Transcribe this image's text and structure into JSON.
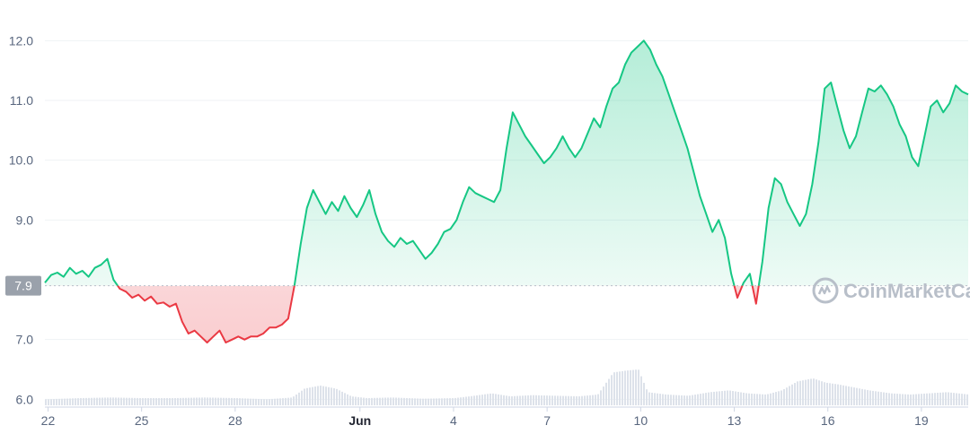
{
  "watermark": {
    "text": "CoinMarketCap"
  },
  "colors": {
    "up": "#16c784",
    "down": "#ea3943",
    "grid": "#eff2f5",
    "axis_text": "#58667e",
    "badge": "#9aa1ab",
    "volume": "#dde2ea"
  },
  "chart_data": {
    "type": "area",
    "baseline": 7.9,
    "baseline_label": "7.9",
    "ylim": [
      5.9,
      12.5
    ],
    "y_ticks": [
      {
        "value": 6.0,
        "label": "6.0"
      },
      {
        "value": 7.0,
        "label": "7.0"
      },
      {
        "value": 9.0,
        "label": "9.0"
      },
      {
        "value": 10.0,
        "label": "10.0"
      },
      {
        "value": 11.0,
        "label": "11.0"
      },
      {
        "value": 12.0,
        "label": "12.0"
      }
    ],
    "x_range": [
      21.9,
      51.5
    ],
    "x_ticks": [
      {
        "day": 22,
        "label": "22",
        "bold": false
      },
      {
        "day": 25,
        "label": "25",
        "bold": false
      },
      {
        "day": 28,
        "label": "28",
        "bold": false
      },
      {
        "day": 32,
        "label": "Jun",
        "bold": true
      },
      {
        "day": 35,
        "label": "4",
        "bold": false
      },
      {
        "day": 38,
        "label": "7",
        "bold": false
      },
      {
        "day": 41,
        "label": "10",
        "bold": false
      },
      {
        "day": 44,
        "label": "13",
        "bold": false
      },
      {
        "day": 47,
        "label": "16",
        "bold": false
      },
      {
        "day": 50,
        "label": "19",
        "bold": false
      }
    ],
    "price": [
      [
        21.9,
        7.95
      ],
      [
        22.1,
        8.08
      ],
      [
        22.3,
        8.12
      ],
      [
        22.5,
        8.05
      ],
      [
        22.7,
        8.2
      ],
      [
        22.9,
        8.1
      ],
      [
        23.1,
        8.15
      ],
      [
        23.3,
        8.05
      ],
      [
        23.5,
        8.2
      ],
      [
        23.7,
        8.25
      ],
      [
        23.9,
        8.35
      ],
      [
        24.1,
        8.0
      ],
      [
        24.3,
        7.85
      ],
      [
        24.5,
        7.8
      ],
      [
        24.7,
        7.7
      ],
      [
        24.9,
        7.75
      ],
      [
        25.1,
        7.65
      ],
      [
        25.3,
        7.72
      ],
      [
        25.5,
        7.6
      ],
      [
        25.7,
        7.62
      ],
      [
        25.9,
        7.55
      ],
      [
        26.1,
        7.6
      ],
      [
        26.3,
        7.3
      ],
      [
        26.5,
        7.1
      ],
      [
        26.7,
        7.15
      ],
      [
        26.9,
        7.05
      ],
      [
        27.1,
        6.95
      ],
      [
        27.3,
        7.05
      ],
      [
        27.5,
        7.15
      ],
      [
        27.7,
        6.95
      ],
      [
        27.9,
        7.0
      ],
      [
        28.1,
        7.05
      ],
      [
        28.3,
        7.0
      ],
      [
        28.5,
        7.05
      ],
      [
        28.7,
        7.05
      ],
      [
        28.9,
        7.1
      ],
      [
        29.1,
        7.2
      ],
      [
        29.3,
        7.2
      ],
      [
        29.5,
        7.25
      ],
      [
        29.7,
        7.35
      ],
      [
        29.9,
        7.9
      ],
      [
        30.1,
        8.6
      ],
      [
        30.3,
        9.2
      ],
      [
        30.5,
        9.5
      ],
      [
        30.7,
        9.3
      ],
      [
        30.9,
        9.1
      ],
      [
        31.1,
        9.3
      ],
      [
        31.3,
        9.15
      ],
      [
        31.5,
        9.4
      ],
      [
        31.7,
        9.2
      ],
      [
        31.9,
        9.05
      ],
      [
        32.1,
        9.25
      ],
      [
        32.3,
        9.5
      ],
      [
        32.5,
        9.1
      ],
      [
        32.7,
        8.8
      ],
      [
        32.9,
        8.65
      ],
      [
        33.1,
        8.55
      ],
      [
        33.3,
        8.7
      ],
      [
        33.5,
        8.6
      ],
      [
        33.7,
        8.65
      ],
      [
        33.9,
        8.5
      ],
      [
        34.1,
        8.35
      ],
      [
        34.3,
        8.45
      ],
      [
        34.5,
        8.6
      ],
      [
        34.7,
        8.8
      ],
      [
        34.9,
        8.85
      ],
      [
        35.1,
        9.0
      ],
      [
        35.3,
        9.3
      ],
      [
        35.5,
        9.55
      ],
      [
        35.7,
        9.45
      ],
      [
        35.9,
        9.4
      ],
      [
        36.1,
        9.35
      ],
      [
        36.3,
        9.3
      ],
      [
        36.5,
        9.5
      ],
      [
        36.7,
        10.2
      ],
      [
        36.9,
        10.8
      ],
      [
        37.1,
        10.6
      ],
      [
        37.3,
        10.4
      ],
      [
        37.5,
        10.25
      ],
      [
        37.7,
        10.1
      ],
      [
        37.9,
        9.95
      ],
      [
        38.1,
        10.05
      ],
      [
        38.3,
        10.2
      ],
      [
        38.5,
        10.4
      ],
      [
        38.7,
        10.2
      ],
      [
        38.9,
        10.05
      ],
      [
        39.1,
        10.2
      ],
      [
        39.3,
        10.45
      ],
      [
        39.5,
        10.7
      ],
      [
        39.7,
        10.55
      ],
      [
        39.9,
        10.9
      ],
      [
        40.1,
        11.2
      ],
      [
        40.3,
        11.3
      ],
      [
        40.5,
        11.6
      ],
      [
        40.7,
        11.8
      ],
      [
        40.9,
        11.9
      ],
      [
        41.1,
        12.0
      ],
      [
        41.3,
        11.85
      ],
      [
        41.5,
        11.6
      ],
      [
        41.7,
        11.4
      ],
      [
        41.9,
        11.1
      ],
      [
        42.1,
        10.8
      ],
      [
        42.3,
        10.5
      ],
      [
        42.5,
        10.2
      ],
      [
        42.7,
        9.8
      ],
      [
        42.9,
        9.4
      ],
      [
        43.1,
        9.1
      ],
      [
        43.3,
        8.8
      ],
      [
        43.5,
        9.0
      ],
      [
        43.7,
        8.7
      ],
      [
        43.9,
        8.1
      ],
      [
        44.1,
        7.7
      ],
      [
        44.3,
        7.95
      ],
      [
        44.5,
        8.1
      ],
      [
        44.7,
        7.6
      ],
      [
        44.9,
        8.3
      ],
      [
        45.1,
        9.2
      ],
      [
        45.3,
        9.7
      ],
      [
        45.5,
        9.6
      ],
      [
        45.7,
        9.3
      ],
      [
        45.9,
        9.1
      ],
      [
        46.1,
        8.9
      ],
      [
        46.3,
        9.1
      ],
      [
        46.5,
        9.6
      ],
      [
        46.7,
        10.3
      ],
      [
        46.9,
        11.2
      ],
      [
        47.1,
        11.3
      ],
      [
        47.3,
        10.9
      ],
      [
        47.5,
        10.5
      ],
      [
        47.7,
        10.2
      ],
      [
        47.9,
        10.4
      ],
      [
        48.1,
        10.8
      ],
      [
        48.3,
        11.2
      ],
      [
        48.5,
        11.15
      ],
      [
        48.7,
        11.25
      ],
      [
        48.9,
        11.1
      ],
      [
        49.1,
        10.9
      ],
      [
        49.3,
        10.6
      ],
      [
        49.5,
        10.4
      ],
      [
        49.7,
        10.05
      ],
      [
        49.9,
        9.9
      ],
      [
        50.1,
        10.4
      ],
      [
        50.3,
        10.9
      ],
      [
        50.5,
        11.0
      ],
      [
        50.7,
        10.8
      ],
      [
        50.9,
        10.95
      ],
      [
        51.1,
        11.25
      ],
      [
        51.3,
        11.15
      ],
      [
        51.5,
        11.1
      ]
    ],
    "volume": [
      [
        21.9,
        6.0
      ],
      [
        23.0,
        6.02
      ],
      [
        24.0,
        6.03
      ],
      [
        25.0,
        6.02
      ],
      [
        26.0,
        6.02
      ],
      [
        27.0,
        6.03
      ],
      [
        28.0,
        6.02
      ],
      [
        29.0,
        6.0
      ],
      [
        29.8,
        6.03
      ],
      [
        30.2,
        6.18
      ],
      [
        30.7,
        6.23
      ],
      [
        31.2,
        6.18
      ],
      [
        31.7,
        6.05
      ],
      [
        32.2,
        6.02
      ],
      [
        33.0,
        6.03
      ],
      [
        34.0,
        6.01
      ],
      [
        35.0,
        6.02
      ],
      [
        35.5,
        6.05
      ],
      [
        36.2,
        6.1
      ],
      [
        36.8,
        6.05
      ],
      [
        37.5,
        6.07
      ],
      [
        38.2,
        6.06
      ],
      [
        39.0,
        6.05
      ],
      [
        39.6,
        6.08
      ],
      [
        40.1,
        6.45
      ],
      [
        40.5,
        6.48
      ],
      [
        40.9,
        6.5
      ],
      [
        41.2,
        6.12
      ],
      [
        41.8,
        6.08
      ],
      [
        42.5,
        6.06
      ],
      [
        43.2,
        6.12
      ],
      [
        43.8,
        6.15
      ],
      [
        44.4,
        6.1
      ],
      [
        45.0,
        6.08
      ],
      [
        45.5,
        6.15
      ],
      [
        46.0,
        6.3
      ],
      [
        46.5,
        6.35
      ],
      [
        46.9,
        6.28
      ],
      [
        47.3,
        6.25
      ],
      [
        47.8,
        6.2
      ],
      [
        48.3,
        6.15
      ],
      [
        49.0,
        6.1
      ],
      [
        49.6,
        6.08
      ],
      [
        50.2,
        6.1
      ],
      [
        50.8,
        6.12
      ],
      [
        51.5,
        6.08
      ]
    ]
  }
}
